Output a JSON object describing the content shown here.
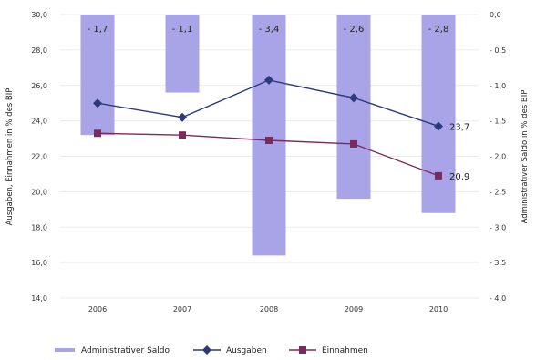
{
  "chart_data": {
    "type": "bar+line",
    "categories": [
      "2006",
      "2007",
      "2008",
      "2009",
      "2010"
    ],
    "left_axis": {
      "label": "Ausgaben, Einnahmen in % des BIP",
      "range": [
        14.0,
        30.0
      ],
      "ticks": [
        "30,0",
        "28,0",
        "26,0",
        "24,0",
        "22,0",
        "20,0",
        "18,0",
        "16,0",
        "14,0"
      ]
    },
    "right_axis": {
      "label": "Administrativer Saldo in % des BIP",
      "range": [
        -4.0,
        0.0
      ],
      "ticks": [
        "0,0",
        "- 0,5",
        "- 1,0",
        "- 1,5",
        "- 2,0",
        "- 2,5",
        "- 3,0",
        "- 3,5",
        "- 4,0"
      ]
    },
    "series": [
      {
        "name": "Administrativer Saldo",
        "kind": "bar",
        "axis": "right",
        "color": "#a9a3e8",
        "values": [
          -1.7,
          -1.1,
          -3.4,
          -2.6,
          -2.8
        ],
        "labels": [
          "- 1,7",
          "- 1,1",
          "- 3,4",
          "- 2,6",
          "- 2,8"
        ]
      },
      {
        "name": "Ausgaben",
        "kind": "line",
        "axis": "left",
        "color": "#2b3a7a",
        "marker": "diamond",
        "values": [
          25.0,
          24.2,
          26.3,
          25.3,
          23.7
        ],
        "end_label": "23,7"
      },
      {
        "name": "Einnahmen",
        "kind": "line",
        "axis": "left",
        "color": "#7a2a5c",
        "marker": "square",
        "values": [
          23.3,
          23.2,
          22.9,
          22.7,
          20.9
        ],
        "end_label": "20,9"
      }
    ],
    "legend_position": "bottom",
    "grid": true
  }
}
